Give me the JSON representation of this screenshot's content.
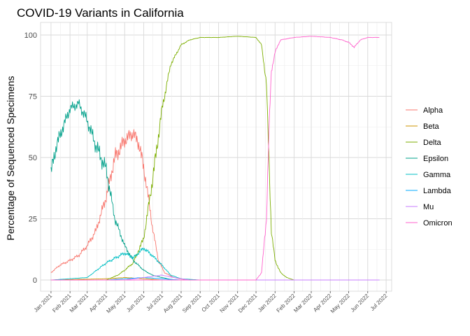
{
  "chart_data": {
    "type": "line",
    "title": "COVID-19 Variants in California",
    "xlabel": "",
    "ylabel": "Percentage of Sequenced Specimens",
    "ylim": [
      0,
      100
    ],
    "yticks": [
      "0",
      "25",
      "50",
      "75",
      "100"
    ],
    "xlim": [
      "2020-12-15",
      "2022-07-10"
    ],
    "xticks": [
      "Jan 2021",
      "Feb 2021",
      "Mar 2021",
      "Apr 2021",
      "May 2021",
      "Jun 2021",
      "Jul 2021",
      "Aug 2021",
      "Sep 2021",
      "Oct 2021",
      "Nov 2021",
      "Dec 2021",
      "Jan 2022",
      "Feb 2022",
      "Mar 2022",
      "Apr 2022",
      "May 2022",
      "Jun 2022",
      "Jul 2022"
    ],
    "grid": true,
    "legend_position": "right",
    "series": [
      {
        "name": "Alpha",
        "color": "#F8766D",
        "points": [
          [
            "2021-01-01",
            3
          ],
          [
            "2021-01-15",
            6
          ],
          [
            "2021-02-01",
            8
          ],
          [
            "2021-02-15",
            10
          ],
          [
            "2021-03-01",
            14
          ],
          [
            "2021-03-15",
            20
          ],
          [
            "2021-04-01",
            34
          ],
          [
            "2021-04-15",
            50
          ],
          [
            "2021-05-01",
            57
          ],
          [
            "2021-05-15",
            60
          ],
          [
            "2021-05-25",
            55
          ],
          [
            "2021-06-05",
            40
          ],
          [
            "2021-06-15",
            22
          ],
          [
            "2021-06-25",
            8
          ],
          [
            "2021-07-05",
            3
          ],
          [
            "2021-07-20",
            1
          ],
          [
            "2021-08-10",
            0
          ],
          [
            "2022-06-20",
            0
          ]
        ]
      },
      {
        "name": "Beta",
        "color": "#CD9600",
        "points": [
          [
            "2021-01-01",
            0
          ],
          [
            "2021-04-01",
            0.5
          ],
          [
            "2021-05-01",
            1
          ],
          [
            "2021-06-01",
            0.5
          ],
          [
            "2021-07-01",
            0
          ],
          [
            "2022-06-20",
            0
          ]
        ]
      },
      {
        "name": "Delta",
        "color": "#7CAE00",
        "points": [
          [
            "2021-01-01",
            0
          ],
          [
            "2021-04-01",
            0
          ],
          [
            "2021-04-20",
            2
          ],
          [
            "2021-05-01",
            4
          ],
          [
            "2021-05-15",
            7
          ],
          [
            "2021-06-01",
            17
          ],
          [
            "2021-06-15",
            40
          ],
          [
            "2021-07-01",
            70
          ],
          [
            "2021-07-15",
            88
          ],
          [
            "2021-08-01",
            96
          ],
          [
            "2021-08-15",
            98
          ],
          [
            "2021-09-01",
            99
          ],
          [
            "2021-10-01",
            99
          ],
          [
            "2021-11-01",
            99.5
          ],
          [
            "2021-12-01",
            99
          ],
          [
            "2021-12-10",
            96
          ],
          [
            "2021-12-18",
            80
          ],
          [
            "2021-12-22",
            50
          ],
          [
            "2021-12-26",
            20
          ],
          [
            "2022-01-01",
            8
          ],
          [
            "2022-01-10",
            3
          ],
          [
            "2022-01-20",
            1
          ],
          [
            "2022-02-01",
            0
          ],
          [
            "2022-06-20",
            0
          ]
        ]
      },
      {
        "name": "Epsilon",
        "color": "#00A08A",
        "points": [
          [
            "2021-01-01",
            44
          ],
          [
            "2021-01-10",
            55
          ],
          [
            "2021-01-20",
            62
          ],
          [
            "2021-02-01",
            70
          ],
          [
            "2021-02-15",
            72
          ],
          [
            "2021-03-01",
            65
          ],
          [
            "2021-03-15",
            55
          ],
          [
            "2021-04-01",
            45
          ],
          [
            "2021-04-15",
            25
          ],
          [
            "2021-05-01",
            14
          ],
          [
            "2021-05-15",
            8
          ],
          [
            "2021-06-01",
            4
          ],
          [
            "2021-06-15",
            2
          ],
          [
            "2021-07-01",
            1
          ],
          [
            "2021-07-20",
            0
          ],
          [
            "2022-06-20",
            0
          ]
        ]
      },
      {
        "name": "Gamma",
        "color": "#00BFC4",
        "points": [
          [
            "2021-01-01",
            0
          ],
          [
            "2021-03-01",
            1
          ],
          [
            "2021-04-01",
            7
          ],
          [
            "2021-05-01",
            11
          ],
          [
            "2021-05-15",
            9
          ],
          [
            "2021-06-01",
            13
          ],
          [
            "2021-06-15",
            10
          ],
          [
            "2021-07-01",
            6
          ],
          [
            "2021-07-15",
            2
          ],
          [
            "2021-08-01",
            0.5
          ],
          [
            "2021-09-01",
            0
          ],
          [
            "2022-06-20",
            0
          ]
        ]
      },
      {
        "name": "Lambda",
        "color": "#00A9FF",
        "points": [
          [
            "2021-01-01",
            0
          ],
          [
            "2021-04-01",
            0
          ],
          [
            "2021-05-01",
            0.5
          ],
          [
            "2021-06-01",
            1
          ],
          [
            "2021-07-01",
            0.5
          ],
          [
            "2021-08-01",
            0
          ],
          [
            "2022-06-20",
            0
          ]
        ]
      },
      {
        "name": "Mu",
        "color": "#C77CFF",
        "points": [
          [
            "2021-01-01",
            0
          ],
          [
            "2021-05-01",
            0
          ],
          [
            "2021-06-01",
            1
          ],
          [
            "2021-07-01",
            2
          ],
          [
            "2021-07-20",
            1
          ],
          [
            "2021-08-15",
            0
          ],
          [
            "2022-06-20",
            0
          ]
        ]
      },
      {
        "name": "Omicron",
        "color": "#FF61CC",
        "points": [
          [
            "2021-01-01",
            0
          ],
          [
            "2021-12-01",
            0
          ],
          [
            "2021-12-10",
            3
          ],
          [
            "2021-12-18",
            25
          ],
          [
            "2021-12-22",
            60
          ],
          [
            "2021-12-26",
            85
          ],
          [
            "2022-01-01",
            93
          ],
          [
            "2022-01-10",
            98
          ],
          [
            "2022-02-01",
            99
          ],
          [
            "2022-03-01",
            99.5
          ],
          [
            "2022-04-01",
            99
          ],
          [
            "2022-04-20",
            98
          ],
          [
            "2022-05-01",
            97
          ],
          [
            "2022-05-10",
            95
          ],
          [
            "2022-05-20",
            98
          ],
          [
            "2022-06-01",
            99
          ],
          [
            "2022-06-20",
            99
          ]
        ]
      }
    ]
  }
}
